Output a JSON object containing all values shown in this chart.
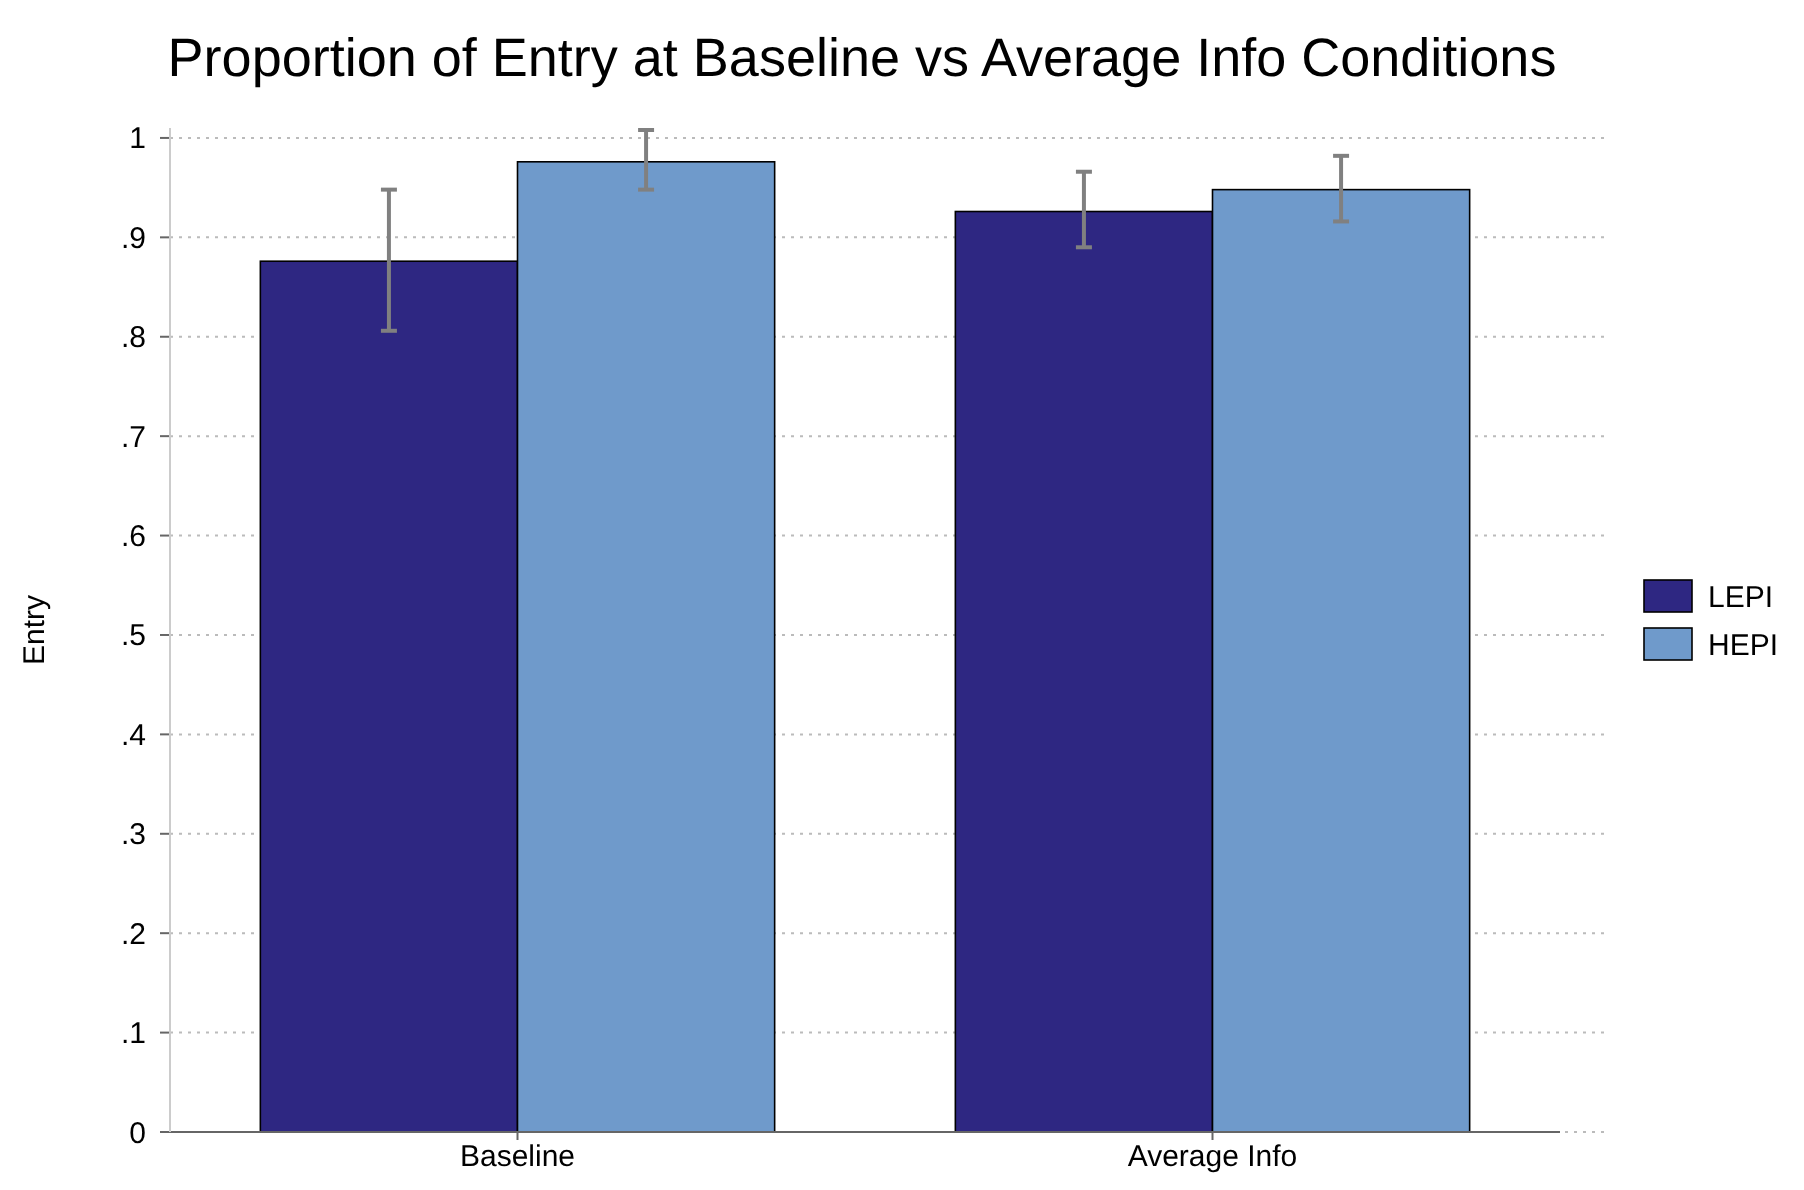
{
  "chart_data": {
    "type": "bar",
    "title": "Proportion of Entry at Baseline vs Average Info Conditions",
    "ylabel": "Entry",
    "categories": [
      "Baseline",
      "Average Info"
    ],
    "series": [
      {
        "name": "LEPI",
        "color": "#2e2782",
        "values": [
          0.876,
          0.926
        ],
        "errors": [
          [
            0.806,
            0.948
          ],
          [
            0.89,
            0.966
          ]
        ]
      },
      {
        "name": "HEPI",
        "color": "#6f9acb",
        "values": [
          0.976,
          0.948
        ],
        "errors": [
          [
            0.948,
            1.008
          ],
          [
            0.916,
            0.982
          ]
        ]
      }
    ],
    "ylim": [
      0,
      1.01
    ],
    "yticks": [
      0,
      {
        "value": 0.1,
        "label": ".1"
      },
      {
        "value": 0.2,
        "label": ".2"
      },
      {
        "value": 0.3,
        "label": ".3"
      },
      {
        "value": 0.4,
        "label": ".4"
      },
      {
        "value": 0.5,
        "label": ".5"
      },
      {
        "value": 0.6,
        "label": ".6"
      },
      {
        "value": 0.7,
        "label": ".7"
      },
      {
        "value": 0.8,
        "label": ".8"
      },
      {
        "value": 0.9,
        "label": ".9"
      },
      1
    ],
    "grid": "y",
    "legend": "right"
  }
}
